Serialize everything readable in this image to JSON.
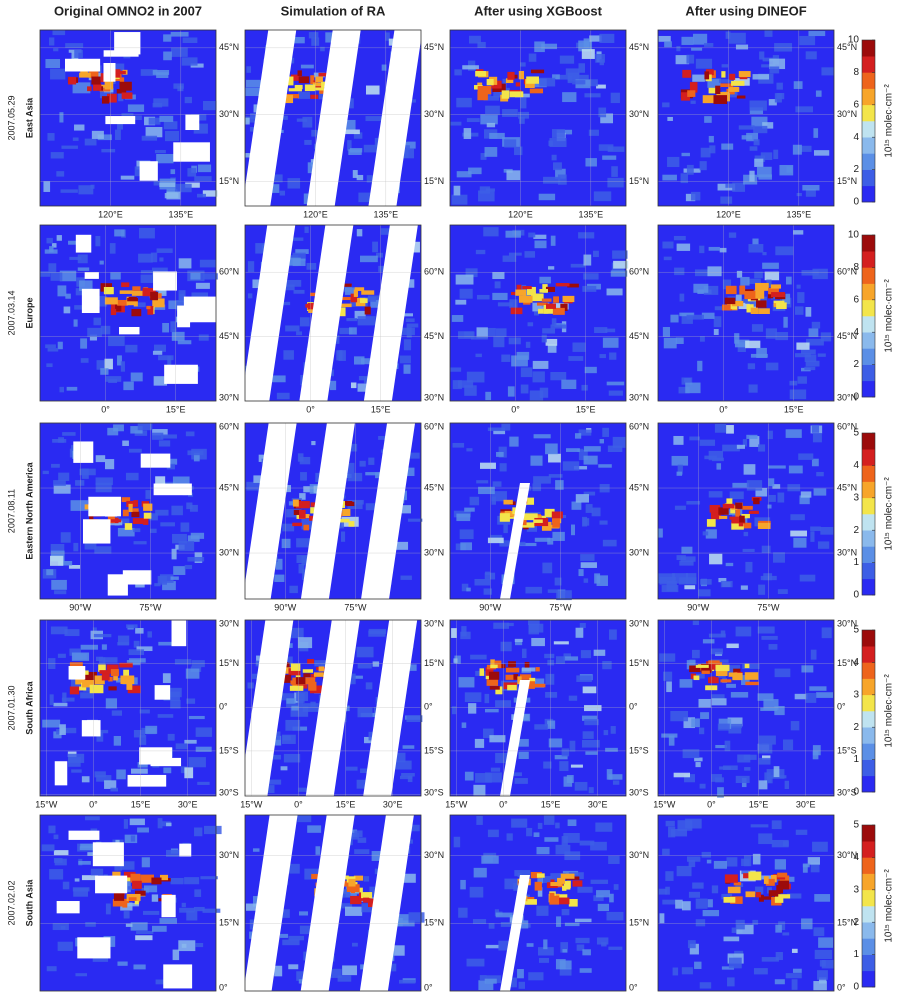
{
  "columns": [
    "Original OMNO2 in 2007",
    "Simulation of RA",
    "After using XGBoost",
    "After using DINEOF"
  ],
  "colorbar_label": "10¹⁵ molec·cm⁻²",
  "colormap": [
    "#2a2af2",
    "#3d5ee6",
    "#5b8fe6",
    "#8ab9ec",
    "#bfe3f0",
    "#f3e54a",
    "#f7a52a",
    "#ee641b",
    "#d41f1f",
    "#9c0b0b"
  ],
  "rows": [
    {
      "date": "2007.05.29",
      "region": "East Asia",
      "lon_lim": [
        105,
        142.5
      ],
      "lon_ticks": [
        {
          "value": 120,
          "label": "120°E"
        },
        {
          "value": 135,
          "label": "135°E"
        }
      ],
      "lat_lim": [
        9.5,
        49
      ],
      "lat_ticks": [
        {
          "value": 45,
          "label": "45°N"
        },
        {
          "value": 30,
          "label": "30°N"
        },
        {
          "value": 15,
          "label": "15°N"
        }
      ],
      "cbar_lim": [
        0,
        10
      ],
      "cbar_ticks": [
        0,
        2,
        4,
        6,
        8,
        10
      ]
    },
    {
      "date": "2007.03.14",
      "region": "Europe",
      "lon_lim": [
        -14,
        23.6
      ],
      "lon_ticks": [
        {
          "value": 0,
          "label": "0°"
        },
        {
          "value": 15,
          "label": "15°E"
        }
      ],
      "lat_lim": [
        30,
        71
      ],
      "lat_ticks": [
        {
          "value": 60,
          "label": "60°N"
        },
        {
          "value": 45,
          "label": "45°N"
        },
        {
          "value": 30,
          "label": "30°N"
        }
      ],
      "cbar_lim": [
        0,
        10
      ],
      "cbar_ticks": [
        0,
        2,
        4,
        6,
        8,
        10
      ]
    },
    {
      "date": "2007.08.11",
      "region": "Eastern North America",
      "lon_lim": [
        -98.6,
        -61
      ],
      "lon_ticks": [
        {
          "value": -90,
          "label": "90°W"
        },
        {
          "value": -75,
          "label": "75°W"
        }
      ],
      "lat_lim": [
        19.4,
        60
      ],
      "lat_ticks": [
        {
          "value": 60,
          "label": "60°N"
        },
        {
          "value": 45,
          "label": "45°N"
        },
        {
          "value": 30,
          "label": "30°N"
        }
      ],
      "cbar_lim": [
        0,
        5
      ],
      "cbar_ticks": [
        0,
        1,
        2,
        3,
        4,
        5
      ]
    },
    {
      "date": "2007.01.30",
      "region": "South Africa",
      "lon_lim": [
        -17,
        39
      ],
      "lon_ticks": [
        {
          "value": -15,
          "label": "15°W"
        },
        {
          "value": 0,
          "label": "0°"
        },
        {
          "value": 15,
          "label": "15°E"
        },
        {
          "value": 30,
          "label": "30°E"
        }
      ],
      "lat_lim": [
        -30.5,
        30
      ],
      "lat_ticks": [
        {
          "value": 30,
          "label": "30°N"
        },
        {
          "value": 15,
          "label": "15°N"
        },
        {
          "value": 0,
          "label": "0°"
        },
        {
          "value": -15,
          "label": "15°S"
        },
        {
          "value": -30,
          "label": "30°S"
        }
      ],
      "cbar_lim": [
        0,
        5
      ],
      "cbar_ticks": [
        0,
        1,
        2,
        3,
        4,
        5
      ]
    },
    {
      "date": "2007.02.02",
      "region": "South Asia",
      "lat_lim": [
        0,
        39
      ],
      "lat_ticks": [
        {
          "value": 30,
          "label": "30°N"
        },
        {
          "value": 15,
          "label": "15°N"
        },
        {
          "value": 0,
          "label": "0°"
        }
      ],
      "cbar_lim": [
        0,
        5
      ],
      "cbar_ticks": [
        0,
        1,
        2,
        3,
        4,
        5
      ]
    }
  ]
}
